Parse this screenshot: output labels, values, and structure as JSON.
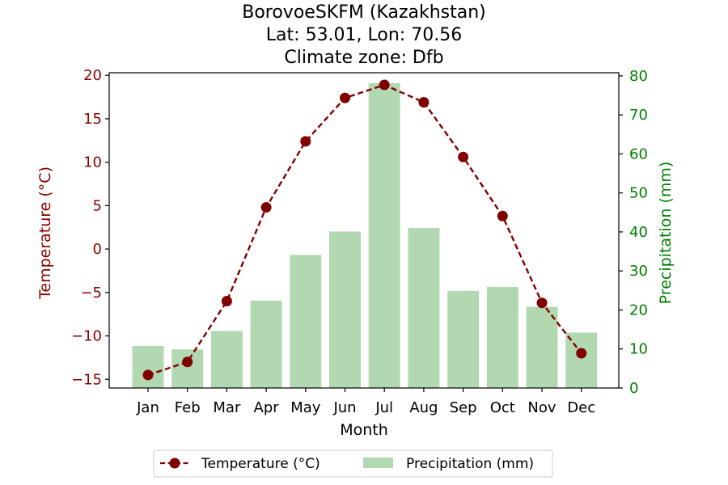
{
  "chart_data": {
    "type": "bar+line",
    "title": [
      "BorovoeSKFM (Kazakhstan)",
      "Lat: 53.01, Lon: 70.56",
      "Climate zone: Dfb"
    ],
    "xlabel": "Month",
    "categories": [
      "Jan",
      "Feb",
      "Mar",
      "Apr",
      "May",
      "Jun",
      "Jul",
      "Aug",
      "Sep",
      "Oct",
      "Nov",
      "Dec"
    ],
    "left_axis": {
      "label": "Temperature (°C)",
      "ylim": [
        -16,
        20.3
      ],
      "ticks": [
        -15,
        -10,
        -5,
        0,
        5,
        10,
        15,
        20
      ],
      "color": "#8b0000"
    },
    "right_axis": {
      "label": "Precipitation (mm)",
      "ylim": [
        0,
        80.8
      ],
      "ticks": [
        0,
        10,
        20,
        30,
        40,
        50,
        60,
        70,
        80
      ],
      "color": "#008000"
    },
    "series": [
      {
        "name": "Temperature (°C)",
        "kind": "line",
        "axis": "left",
        "style": "dashed with circle markers",
        "color": "#800000",
        "values": [
          -14.5,
          -13.0,
          -6.0,
          4.8,
          12.4,
          17.4,
          18.9,
          16.9,
          10.6,
          3.8,
          -6.2,
          -12.0
        ]
      },
      {
        "name": "Precipitation (mm)",
        "kind": "bar",
        "axis": "right",
        "color": "#b2d8b2",
        "values": [
          10.8,
          9.9,
          14.6,
          22.4,
          34.1,
          40.1,
          78.1,
          41.0,
          24.9,
          25.9,
          20.8,
          14.2
        ]
      }
    ],
    "legend": {
      "placement": "bottom-center",
      "entries": [
        "Temperature (°C)",
        "Precipitation (mm)"
      ]
    },
    "grid": false
  }
}
